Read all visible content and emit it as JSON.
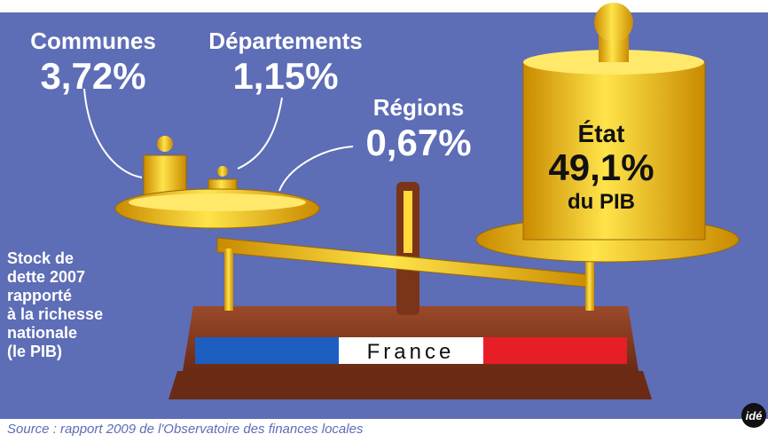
{
  "labels": [
    {
      "name": "Communes",
      "value": "3,72%"
    },
    {
      "name": "Départements",
      "value": "1,15%"
    },
    {
      "name": "Régions",
      "value": "0,67%"
    },
    {
      "name": "État",
      "value": "49,1%",
      "note": "du PIB"
    }
  ],
  "caption": [
    "Stock de",
    "dette 2007",
    "rapporté",
    "à la richesse",
    "nationale",
    "(le PIB)"
  ],
  "flag_text": "France",
  "source": "Source : rapport 2009 de l'Observatoire des finances locales",
  "logo": "idé"
}
